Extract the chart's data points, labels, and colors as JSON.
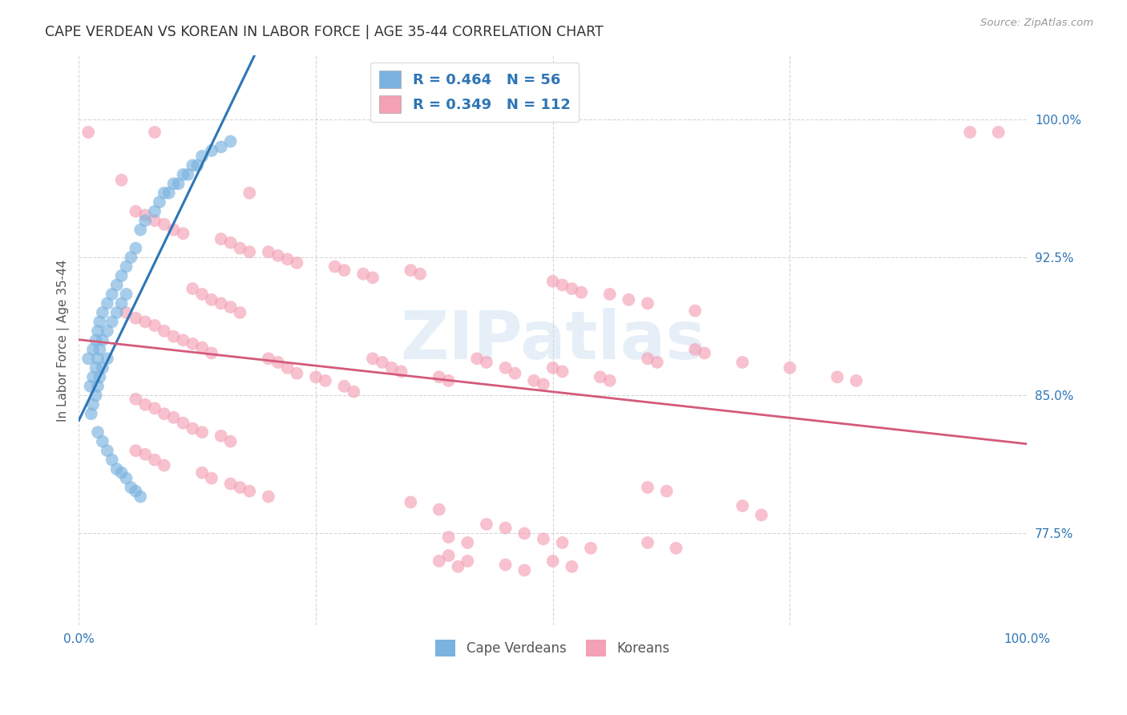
{
  "title": "CAPE VERDEAN VS KOREAN IN LABOR FORCE | AGE 35-44 CORRELATION CHART",
  "source": "Source: ZipAtlas.com",
  "ylabel": "In Labor Force | Age 35-44",
  "ytick_labels": [
    "77.5%",
    "85.0%",
    "92.5%",
    "100.0%"
  ],
  "ytick_values": [
    0.775,
    0.85,
    0.925,
    1.0
  ],
  "xlim": [
    0.0,
    1.0
  ],
  "ylim": [
    0.725,
    1.035
  ],
  "blue_color": "#7ab3e0",
  "pink_color": "#f4a0b5",
  "blue_line_color": "#2e75b6",
  "pink_line_color": "#d45a7a",
  "blue_r": 0.464,
  "blue_n": 56,
  "pink_r": 0.349,
  "pink_n": 112,
  "watermark_text": "ZIPatlas",
  "blue_points": [
    [
      0.01,
      0.87
    ],
    [
      0.012,
      0.855
    ],
    [
      0.013,
      0.84
    ],
    [
      0.015,
      0.875
    ],
    [
      0.015,
      0.86
    ],
    [
      0.015,
      0.845
    ],
    [
      0.018,
      0.88
    ],
    [
      0.018,
      0.865
    ],
    [
      0.018,
      0.85
    ],
    [
      0.02,
      0.885
    ],
    [
      0.02,
      0.87
    ],
    [
      0.02,
      0.855
    ],
    [
      0.022,
      0.89
    ],
    [
      0.022,
      0.875
    ],
    [
      0.022,
      0.86
    ],
    [
      0.025,
      0.895
    ],
    [
      0.025,
      0.88
    ],
    [
      0.025,
      0.865
    ],
    [
      0.03,
      0.9
    ],
    [
      0.03,
      0.885
    ],
    [
      0.03,
      0.87
    ],
    [
      0.035,
      0.905
    ],
    [
      0.035,
      0.89
    ],
    [
      0.04,
      0.91
    ],
    [
      0.04,
      0.895
    ],
    [
      0.045,
      0.915
    ],
    [
      0.045,
      0.9
    ],
    [
      0.05,
      0.92
    ],
    [
      0.05,
      0.905
    ],
    [
      0.055,
      0.925
    ],
    [
      0.06,
      0.93
    ],
    [
      0.065,
      0.94
    ],
    [
      0.07,
      0.945
    ],
    [
      0.08,
      0.95
    ],
    [
      0.085,
      0.955
    ],
    [
      0.09,
      0.96
    ],
    [
      0.095,
      0.96
    ],
    [
      0.1,
      0.965
    ],
    [
      0.105,
      0.965
    ],
    [
      0.11,
      0.97
    ],
    [
      0.115,
      0.97
    ],
    [
      0.12,
      0.975
    ],
    [
      0.125,
      0.975
    ],
    [
      0.13,
      0.98
    ],
    [
      0.14,
      0.983
    ],
    [
      0.15,
      0.985
    ],
    [
      0.16,
      0.988
    ],
    [
      0.02,
      0.83
    ],
    [
      0.025,
      0.825
    ],
    [
      0.03,
      0.82
    ],
    [
      0.035,
      0.815
    ],
    [
      0.04,
      0.81
    ],
    [
      0.045,
      0.808
    ],
    [
      0.05,
      0.805
    ],
    [
      0.055,
      0.8
    ],
    [
      0.06,
      0.798
    ],
    [
      0.065,
      0.795
    ]
  ],
  "pink_points": [
    [
      0.01,
      0.993
    ],
    [
      0.08,
      0.993
    ],
    [
      0.94,
      0.993
    ],
    [
      0.97,
      0.993
    ],
    [
      0.045,
      0.967
    ],
    [
      0.18,
      0.96
    ],
    [
      0.06,
      0.95
    ],
    [
      0.07,
      0.948
    ],
    [
      0.08,
      0.945
    ],
    [
      0.09,
      0.943
    ],
    [
      0.1,
      0.94
    ],
    [
      0.11,
      0.938
    ],
    [
      0.15,
      0.935
    ],
    [
      0.16,
      0.933
    ],
    [
      0.17,
      0.93
    ],
    [
      0.18,
      0.928
    ],
    [
      0.2,
      0.928
    ],
    [
      0.21,
      0.926
    ],
    [
      0.22,
      0.924
    ],
    [
      0.23,
      0.922
    ],
    [
      0.27,
      0.92
    ],
    [
      0.28,
      0.918
    ],
    [
      0.3,
      0.916
    ],
    [
      0.31,
      0.914
    ],
    [
      0.35,
      0.918
    ],
    [
      0.36,
      0.916
    ],
    [
      0.5,
      0.912
    ],
    [
      0.51,
      0.91
    ],
    [
      0.52,
      0.908
    ],
    [
      0.53,
      0.906
    ],
    [
      0.56,
      0.905
    ],
    [
      0.58,
      0.902
    ],
    [
      0.6,
      0.9
    ],
    [
      0.65,
      0.896
    ],
    [
      0.12,
      0.908
    ],
    [
      0.13,
      0.905
    ],
    [
      0.14,
      0.902
    ],
    [
      0.15,
      0.9
    ],
    [
      0.16,
      0.898
    ],
    [
      0.17,
      0.895
    ],
    [
      0.05,
      0.895
    ],
    [
      0.06,
      0.892
    ],
    [
      0.07,
      0.89
    ],
    [
      0.08,
      0.888
    ],
    [
      0.09,
      0.885
    ],
    [
      0.1,
      0.882
    ],
    [
      0.11,
      0.88
    ],
    [
      0.12,
      0.878
    ],
    [
      0.13,
      0.876
    ],
    [
      0.14,
      0.873
    ],
    [
      0.2,
      0.87
    ],
    [
      0.21,
      0.868
    ],
    [
      0.22,
      0.865
    ],
    [
      0.23,
      0.862
    ],
    [
      0.25,
      0.86
    ],
    [
      0.26,
      0.858
    ],
    [
      0.28,
      0.855
    ],
    [
      0.29,
      0.852
    ],
    [
      0.31,
      0.87
    ],
    [
      0.32,
      0.868
    ],
    [
      0.33,
      0.865
    ],
    [
      0.34,
      0.863
    ],
    [
      0.38,
      0.86
    ],
    [
      0.39,
      0.858
    ],
    [
      0.42,
      0.87
    ],
    [
      0.43,
      0.868
    ],
    [
      0.45,
      0.865
    ],
    [
      0.46,
      0.862
    ],
    [
      0.48,
      0.858
    ],
    [
      0.49,
      0.856
    ],
    [
      0.5,
      0.865
    ],
    [
      0.51,
      0.863
    ],
    [
      0.55,
      0.86
    ],
    [
      0.56,
      0.858
    ],
    [
      0.6,
      0.87
    ],
    [
      0.61,
      0.868
    ],
    [
      0.65,
      0.875
    ],
    [
      0.66,
      0.873
    ],
    [
      0.7,
      0.868
    ],
    [
      0.75,
      0.865
    ],
    [
      0.8,
      0.86
    ],
    [
      0.82,
      0.858
    ],
    [
      0.06,
      0.848
    ],
    [
      0.07,
      0.845
    ],
    [
      0.08,
      0.843
    ],
    [
      0.09,
      0.84
    ],
    [
      0.1,
      0.838
    ],
    [
      0.11,
      0.835
    ],
    [
      0.12,
      0.832
    ],
    [
      0.13,
      0.83
    ],
    [
      0.15,
      0.828
    ],
    [
      0.16,
      0.825
    ],
    [
      0.06,
      0.82
    ],
    [
      0.07,
      0.818
    ],
    [
      0.08,
      0.815
    ],
    [
      0.09,
      0.812
    ],
    [
      0.13,
      0.808
    ],
    [
      0.14,
      0.805
    ],
    [
      0.16,
      0.802
    ],
    [
      0.17,
      0.8
    ],
    [
      0.18,
      0.798
    ],
    [
      0.2,
      0.795
    ],
    [
      0.35,
      0.792
    ],
    [
      0.38,
      0.788
    ],
    [
      0.6,
      0.8
    ],
    [
      0.62,
      0.798
    ],
    [
      0.7,
      0.79
    ],
    [
      0.72,
      0.785
    ],
    [
      0.43,
      0.78
    ],
    [
      0.45,
      0.778
    ],
    [
      0.47,
      0.775
    ],
    [
      0.49,
      0.772
    ],
    [
      0.51,
      0.77
    ],
    [
      0.54,
      0.767
    ],
    [
      0.39,
      0.763
    ],
    [
      0.41,
      0.76
    ],
    [
      0.45,
      0.758
    ],
    [
      0.47,
      0.755
    ],
    [
      0.39,
      0.773
    ],
    [
      0.41,
      0.77
    ],
    [
      0.38,
      0.76
    ],
    [
      0.4,
      0.757
    ],
    [
      0.5,
      0.76
    ],
    [
      0.52,
      0.757
    ],
    [
      0.6,
      0.77
    ],
    [
      0.63,
      0.767
    ]
  ]
}
